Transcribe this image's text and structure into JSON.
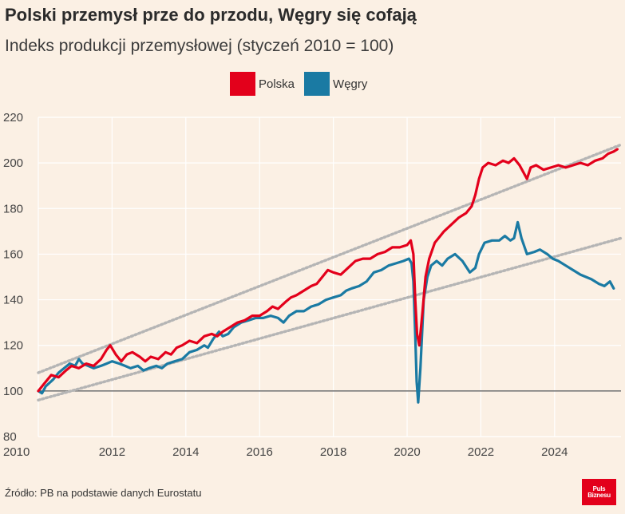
{
  "header": {
    "title": "Polski przemysł prze do przodu, Węgry się cofają",
    "subtitle": "Indeks produkcji przemysłowej (styczeń 2010 = 100)"
  },
  "footer": {
    "source": "Źródło: PB na podstawie danych Eurostatu",
    "logo_line1": "Puls",
    "logo_line2": "Biznesu"
  },
  "colors": {
    "background": "#fbf0e4",
    "polska": "#e3001b",
    "wegry": "#1a7aa3",
    "trend": "#b5b5b5",
    "baseline": "#7a7a7a",
    "grid": "#ffffff"
  },
  "chart_data": {
    "type": "line",
    "title": "Polski przemysł prze do przodu, Węgry się cofają",
    "subtitle": "Indeks produkcji przemysłowej (styczeń 2010 = 100)",
    "xlabel": "",
    "ylabel": "",
    "xlim": [
      2010,
      2025.8
    ],
    "ylim": [
      80,
      220
    ],
    "x_ticks": [
      2010,
      2012,
      2014,
      2016,
      2018,
      2020,
      2022,
      2024
    ],
    "y_ticks": [
      80,
      100,
      120,
      140,
      160,
      180,
      200,
      220
    ],
    "grid": true,
    "legend": "top-center",
    "reference_line": 100,
    "series": [
      {
        "name": "Polska",
        "points": [
          [
            2010.0,
            100
          ],
          [
            2010.15,
            103
          ],
          [
            2010.35,
            107
          ],
          [
            2010.55,
            106
          ],
          [
            2010.75,
            109
          ],
          [
            2010.9,
            111
          ],
          [
            2011.1,
            110
          ],
          [
            2011.3,
            112
          ],
          [
            2011.5,
            111
          ],
          [
            2011.7,
            114
          ],
          [
            2011.85,
            118
          ],
          [
            2011.95,
            120
          ],
          [
            2012.1,
            116
          ],
          [
            2012.25,
            113
          ],
          [
            2012.4,
            116
          ],
          [
            2012.55,
            117
          ],
          [
            2012.75,
            115
          ],
          [
            2012.9,
            113
          ],
          [
            2013.05,
            115
          ],
          [
            2013.25,
            114
          ],
          [
            2013.45,
            117
          ],
          [
            2013.6,
            116
          ],
          [
            2013.75,
            119
          ],
          [
            2013.9,
            120
          ],
          [
            2014.1,
            122
          ],
          [
            2014.3,
            121
          ],
          [
            2014.5,
            124
          ],
          [
            2014.7,
            125
          ],
          [
            2014.85,
            124
          ],
          [
            2015.0,
            126
          ],
          [
            2015.2,
            128
          ],
          [
            2015.4,
            130
          ],
          [
            2015.6,
            131
          ],
          [
            2015.8,
            133
          ],
          [
            2016.0,
            133
          ],
          [
            2016.2,
            135
          ],
          [
            2016.35,
            137
          ],
          [
            2016.5,
            136
          ],
          [
            2016.7,
            139
          ],
          [
            2016.85,
            141
          ],
          [
            2017.0,
            142
          ],
          [
            2017.2,
            144
          ],
          [
            2017.4,
            146
          ],
          [
            2017.55,
            147
          ],
          [
            2017.7,
            150
          ],
          [
            2017.85,
            153
          ],
          [
            2018.0,
            152
          ],
          [
            2018.2,
            151
          ],
          [
            2018.4,
            154
          ],
          [
            2018.6,
            157
          ],
          [
            2018.8,
            158
          ],
          [
            2019.0,
            158
          ],
          [
            2019.2,
            160
          ],
          [
            2019.4,
            161
          ],
          [
            2019.6,
            163
          ],
          [
            2019.8,
            163
          ],
          [
            2020.0,
            164
          ],
          [
            2020.1,
            166
          ],
          [
            2020.17,
            160
          ],
          [
            2020.22,
            140
          ],
          [
            2020.27,
            125
          ],
          [
            2020.33,
            120
          ],
          [
            2020.42,
            135
          ],
          [
            2020.5,
            150
          ],
          [
            2020.6,
            158
          ],
          [
            2020.75,
            165
          ],
          [
            2020.9,
            168
          ],
          [
            2021.0,
            170
          ],
          [
            2021.2,
            173
          ],
          [
            2021.4,
            176
          ],
          [
            2021.6,
            178
          ],
          [
            2021.75,
            181
          ],
          [
            2021.85,
            186
          ],
          [
            2021.95,
            193
          ],
          [
            2022.05,
            198
          ],
          [
            2022.2,
            200
          ],
          [
            2022.4,
            199
          ],
          [
            2022.6,
            201
          ],
          [
            2022.75,
            200
          ],
          [
            2022.9,
            202
          ],
          [
            2023.05,
            199
          ],
          [
            2023.15,
            196
          ],
          [
            2023.25,
            193
          ],
          [
            2023.35,
            198
          ],
          [
            2023.5,
            199
          ],
          [
            2023.7,
            197
          ],
          [
            2023.9,
            198
          ],
          [
            2024.1,
            199
          ],
          [
            2024.3,
            198
          ],
          [
            2024.5,
            199
          ],
          [
            2024.7,
            200
          ],
          [
            2024.9,
            199
          ],
          [
            2025.1,
            201
          ],
          [
            2025.3,
            202
          ],
          [
            2025.45,
            204
          ],
          [
            2025.6,
            205
          ],
          [
            2025.7,
            206
          ]
        ]
      },
      {
        "name": "Węgry",
        "points": [
          [
            2010.0,
            100
          ],
          [
            2010.1,
            99
          ],
          [
            2010.2,
            102
          ],
          [
            2010.4,
            105
          ],
          [
            2010.55,
            108
          ],
          [
            2010.7,
            110
          ],
          [
            2010.85,
            112
          ],
          [
            2011.0,
            111
          ],
          [
            2011.1,
            114
          ],
          [
            2011.2,
            112
          ],
          [
            2011.35,
            111
          ],
          [
            2011.5,
            110
          ],
          [
            2011.7,
            111
          ],
          [
            2011.85,
            112
          ],
          [
            2012.0,
            113
          ],
          [
            2012.2,
            112
          ],
          [
            2012.35,
            111
          ],
          [
            2012.5,
            110
          ],
          [
            2012.7,
            111
          ],
          [
            2012.85,
            109
          ],
          [
            2013.0,
            110
          ],
          [
            2013.2,
            111
          ],
          [
            2013.35,
            110
          ],
          [
            2013.5,
            112
          ],
          [
            2013.7,
            113
          ],
          [
            2013.9,
            114
          ],
          [
            2014.1,
            117
          ],
          [
            2014.3,
            118
          ],
          [
            2014.5,
            120
          ],
          [
            2014.6,
            119
          ],
          [
            2014.75,
            123
          ],
          [
            2014.9,
            126
          ],
          [
            2015.0,
            124
          ],
          [
            2015.15,
            125
          ],
          [
            2015.3,
            128
          ],
          [
            2015.5,
            130
          ],
          [
            2015.7,
            131
          ],
          [
            2015.9,
            132
          ],
          [
            2016.1,
            132
          ],
          [
            2016.3,
            133
          ],
          [
            2016.5,
            132
          ],
          [
            2016.65,
            130
          ],
          [
            2016.8,
            133
          ],
          [
            2017.0,
            135
          ],
          [
            2017.2,
            135
          ],
          [
            2017.4,
            137
          ],
          [
            2017.6,
            138
          ],
          [
            2017.8,
            140
          ],
          [
            2018.0,
            141
          ],
          [
            2018.2,
            142
          ],
          [
            2018.35,
            144
          ],
          [
            2018.5,
            145
          ],
          [
            2018.7,
            146
          ],
          [
            2018.9,
            148
          ],
          [
            2019.0,
            150
          ],
          [
            2019.1,
            152
          ],
          [
            2019.3,
            153
          ],
          [
            2019.5,
            155
          ],
          [
            2019.7,
            156
          ],
          [
            2019.9,
            157
          ],
          [
            2020.05,
            158
          ],
          [
            2020.12,
            156
          ],
          [
            2020.17,
            148
          ],
          [
            2020.22,
            125
          ],
          [
            2020.26,
            104
          ],
          [
            2020.3,
            95
          ],
          [
            2020.36,
            110
          ],
          [
            2020.45,
            140
          ],
          [
            2020.55,
            150
          ],
          [
            2020.65,
            155
          ],
          [
            2020.8,
            157
          ],
          [
            2020.95,
            155
          ],
          [
            2021.1,
            158
          ],
          [
            2021.3,
            160
          ],
          [
            2021.5,
            157
          ],
          [
            2021.7,
            152
          ],
          [
            2021.85,
            154
          ],
          [
            2021.95,
            160
          ],
          [
            2022.1,
            165
          ],
          [
            2022.3,
            166
          ],
          [
            2022.5,
            166
          ],
          [
            2022.65,
            168
          ],
          [
            2022.8,
            166
          ],
          [
            2022.9,
            167
          ],
          [
            2023.0,
            174
          ],
          [
            2023.1,
            167
          ],
          [
            2023.25,
            160
          ],
          [
            2023.45,
            161
          ],
          [
            2023.6,
            162
          ],
          [
            2023.8,
            160
          ],
          [
            2023.95,
            158
          ],
          [
            2024.1,
            157
          ],
          [
            2024.3,
            155
          ],
          [
            2024.5,
            153
          ],
          [
            2024.7,
            151
          ],
          [
            2024.85,
            150
          ],
          [
            2025.0,
            149
          ],
          [
            2025.2,
            147
          ],
          [
            2025.35,
            146
          ],
          [
            2025.5,
            148
          ],
          [
            2025.6,
            145
          ]
        ]
      }
    ],
    "trend_lines": [
      {
        "series": "Polska",
        "points": [
          [
            2010.0,
            108
          ],
          [
            2025.8,
            208
          ]
        ]
      },
      {
        "series": "Węgry",
        "points": [
          [
            2010.0,
            96
          ],
          [
            2025.8,
            167
          ]
        ]
      }
    ]
  }
}
